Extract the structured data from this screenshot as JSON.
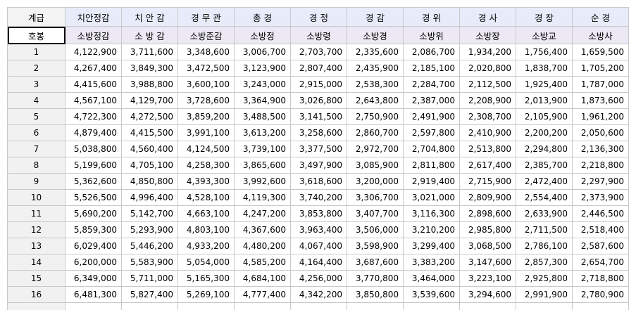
{
  "sheet": {
    "col_header_label": "계급",
    "row_header_label": "호봉",
    "columns": [
      {
        "rank": "치안정감",
        "fire_rank": "소방정감"
      },
      {
        "rank": "치 안 감",
        "fire_rank": "소 방 감"
      },
      {
        "rank": "경 무 관",
        "fire_rank": "소방준감"
      },
      {
        "rank": "총  경",
        "fire_rank": "소방정"
      },
      {
        "rank": "경  정",
        "fire_rank": "소방령"
      },
      {
        "rank": "경  감",
        "fire_rank": "소방경"
      },
      {
        "rank": "경  위",
        "fire_rank": "소방위"
      },
      {
        "rank": "경  사",
        "fire_rank": "소방장"
      },
      {
        "rank": "경  장",
        "fire_rank": "소방교"
      },
      {
        "rank": "순  경",
        "fire_rank": "소방사"
      }
    ],
    "rows": [
      {
        "step": "1",
        "values": [
          "4,122,900",
          "3,711,600",
          "3,348,600",
          "3,006,700",
          "2,703,700",
          "2,335,600",
          "2,086,700",
          "1,934,200",
          "1,756,400",
          "1,659,500"
        ]
      },
      {
        "step": "2",
        "values": [
          "4,267,400",
          "3,849,300",
          "3,472,500",
          "3,123,900",
          "2,807,400",
          "2,435,900",
          "2,185,100",
          "2,020,800",
          "1,838,700",
          "1,705,200"
        ]
      },
      {
        "step": "3",
        "values": [
          "4,415,600",
          "3,988,800",
          "3,600,100",
          "3,243,000",
          "2,915,000",
          "2,538,300",
          "2,284,700",
          "2,112,500",
          "1,925,400",
          "1,787,000"
        ]
      },
      {
        "step": "4",
        "values": [
          "4,567,100",
          "4,129,700",
          "3,728,600",
          "3,364,900",
          "3,026,800",
          "2,643,800",
          "2,387,000",
          "2,208,900",
          "2,013,900",
          "1,873,600"
        ]
      },
      {
        "step": "5",
        "values": [
          "4,722,300",
          "4,272,500",
          "3,859,200",
          "3,488,500",
          "3,141,500",
          "2,750,900",
          "2,491,900",
          "2,308,700",
          "2,105,900",
          "1,961,200"
        ]
      },
      {
        "step": "6",
        "values": [
          "4,879,400",
          "4,415,500",
          "3,991,100",
          "3,613,200",
          "3,258,600",
          "2,860,700",
          "2,597,800",
          "2,410,900",
          "2,200,200",
          "2,050,600"
        ]
      },
      {
        "step": "7",
        "values": [
          "5,038,800",
          "4,560,400",
          "4,124,500",
          "3,739,100",
          "3,377,500",
          "2,972,700",
          "2,704,800",
          "2,513,800",
          "2,294,800",
          "2,136,300"
        ]
      },
      {
        "step": "8",
        "values": [
          "5,199,600",
          "4,705,100",
          "4,258,300",
          "3,865,600",
          "3,497,900",
          "3,085,900",
          "2,811,800",
          "2,617,400",
          "2,385,700",
          "2,218,800"
        ]
      },
      {
        "step": "9",
        "values": [
          "5,362,600",
          "4,850,800",
          "4,393,300",
          "3,992,600",
          "3,618,600",
          "3,200,000",
          "2,919,400",
          "2,715,900",
          "2,472,400",
          "2,297,900"
        ]
      },
      {
        "step": "10",
        "values": [
          "5,526,500",
          "4,996,400",
          "4,528,100",
          "4,119,300",
          "3,740,200",
          "3,306,700",
          "3,021,000",
          "2,809,900",
          "2,554,400",
          "2,373,900"
        ]
      },
      {
        "step": "11",
        "values": [
          "5,690,200",
          "5,142,700",
          "4,663,100",
          "4,247,200",
          "3,853,800",
          "3,407,700",
          "3,116,300",
          "2,898,600",
          "2,633,900",
          "2,446,500"
        ]
      },
      {
        "step": "12",
        "values": [
          "5,859,300",
          "5,293,900",
          "4,803,100",
          "4,367,600",
          "3,963,400",
          "3,506,000",
          "3,210,200",
          "2,985,800",
          "2,711,500",
          "2,518,400"
        ]
      },
      {
        "step": "13",
        "values": [
          "6,029,400",
          "5,446,200",
          "4,933,200",
          "4,480,200",
          "4,067,400",
          "3,598,900",
          "3,299,400",
          "3,068,500",
          "2,786,100",
          "2,587,600"
        ]
      },
      {
        "step": "14",
        "values": [
          "6,200,000",
          "5,583,900",
          "5,054,000",
          "4,585,200",
          "4,164,400",
          "3,687,600",
          "3,383,200",
          "3,147,600",
          "2,857,300",
          "2,654,700"
        ]
      },
      {
        "step": "15",
        "values": [
          "6,349,000",
          "5,711,000",
          "5,165,300",
          "4,684,100",
          "4,256,000",
          "3,770,800",
          "3,464,000",
          "3,223,100",
          "2,925,800",
          "2,718,800"
        ]
      },
      {
        "step": "16",
        "values": [
          "6,481,300",
          "5,827,400",
          "5,269,100",
          "4,777,400",
          "4,342,200",
          "3,850,800",
          "3,539,600",
          "3,294,600",
          "2,991,900",
          "2,780,900"
        ]
      }
    ]
  }
}
